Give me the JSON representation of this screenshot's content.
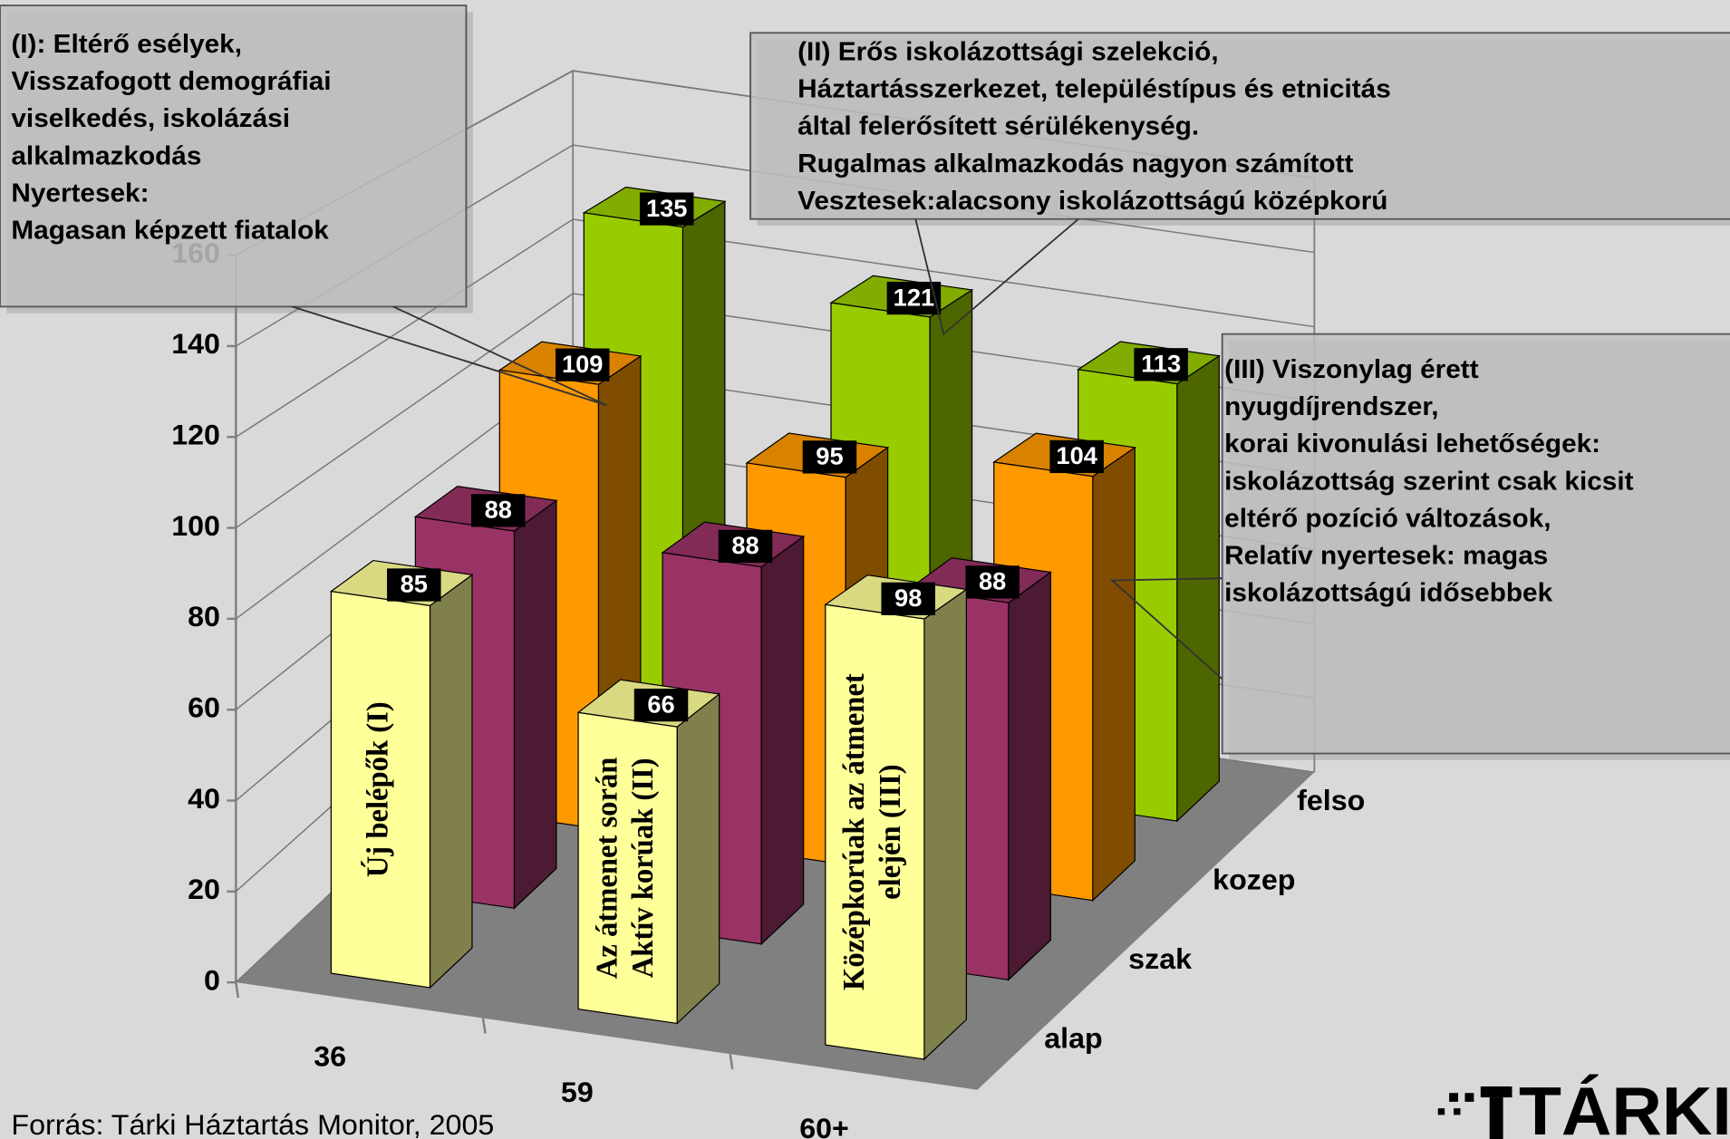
{
  "chart_data": {
    "type": "bar3d",
    "categories": [
      "36",
      "59",
      "60+"
    ],
    "series": [
      {
        "name": "alap",
        "color": "#ffff99",
        "values": [
          85,
          66,
          98
        ]
      },
      {
        "name": "szak",
        "color": "#993366",
        "values": [
          88,
          88,
          88
        ]
      },
      {
        "name": "kozep",
        "color": "#ff9900",
        "values": [
          109,
          95,
          104
        ]
      },
      {
        "name": "felso",
        "color": "#99cc00",
        "values": [
          135,
          121,
          113
        ]
      }
    ],
    "ylim": [
      0,
      160
    ],
    "yticks": [
      0,
      20,
      40,
      60,
      80,
      100,
      120,
      140,
      160
    ],
    "grid": true,
    "bar_annotations": [
      [
        "Új belépők (I)"
      ],
      [
        "Az átmenet során",
        "Aktív korúak  (II)"
      ],
      [
        "Középkorúak az átmenet",
        "elején (III)"
      ]
    ],
    "annotations": [
      [
        "(I): Eltérő esélyek,",
        "Visszafogott demográfiai",
        "viselkedés, iskolázási",
        "alkalmazkodás",
        "Nyertesek:",
        "Magasan képzett fiatalok"
      ],
      [
        "(II) Erős iskolázottsági szelekció,",
        "Háztartásszerkezet, településtípus és etnicitás",
        "által felerősített sérülékenység.",
        "Rugalmas alkalmazkodás nagyon számított",
        "Vesztesek:alacsony iskolázottságú középkorú"
      ],
      [
        "(III) Viszonylag érett",
        "nyugdíjrendszer,",
        "korai kivonulási lehetőségek:",
        "iskolázottság szerint csak kicsit",
        "eltérő pozíció változások,",
        "Relatív nyertesek: magas",
        "iskolázottságú idősebbek"
      ]
    ],
    "source": "Forrás: Tárki Háztartás Monitor, 2005",
    "logo": "TÁRKI"
  }
}
